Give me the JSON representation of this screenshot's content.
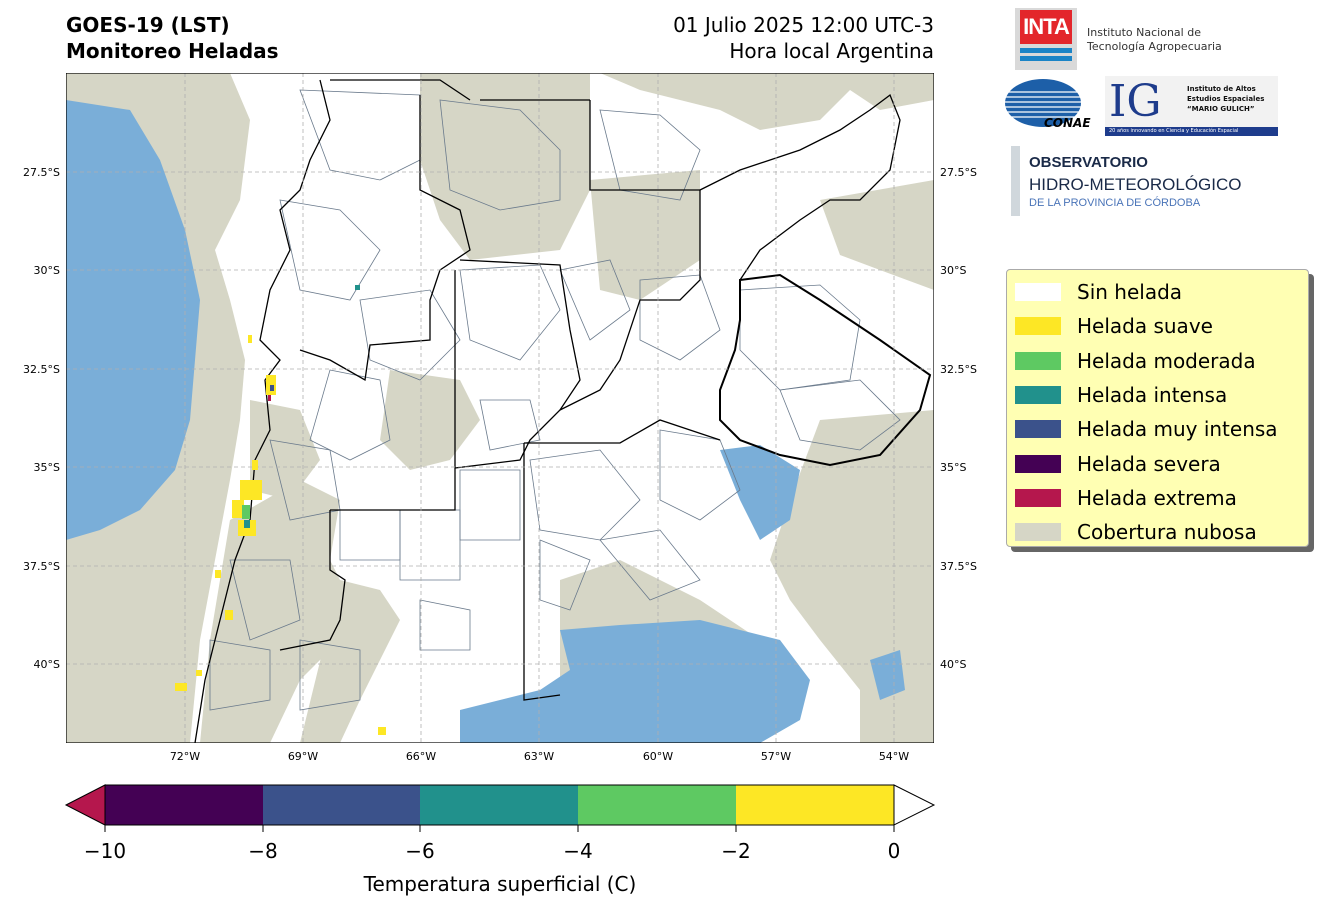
{
  "header": {
    "left_line1": "GOES-19 (LST)",
    "left_line2": "Monitoreo Heladas",
    "right_line1": "01 Julio 2025 12:00 UTC-3",
    "right_line2": "Hora local Argentina"
  },
  "map": {
    "lat_ticks": [
      "27.5°S",
      "30°S",
      "32.5°S",
      "35°S",
      "37.5°S",
      "40°S"
    ],
    "lon_ticks": [
      "72°W",
      "69°W",
      "66°W",
      "63°W",
      "60°W",
      "57°W",
      "54°W"
    ],
    "colors": {
      "cloud": "#d6d6c6",
      "water": "#7aaed8",
      "land": "#ffffff",
      "border": "#000000",
      "department_line": "#6a7a8c"
    }
  },
  "legend": {
    "items": [
      {
        "label": "Sin helada",
        "color": "#ffffff"
      },
      {
        "label": "Helada suave",
        "color": "#fde725"
      },
      {
        "label": "Helada moderada",
        "color": "#5ec962"
      },
      {
        "label": "Helada intensa",
        "color": "#21918c"
      },
      {
        "label": "Helada muy intensa",
        "color": "#3b528b"
      },
      {
        "label": "Helada severa",
        "color": "#440154"
      },
      {
        "label": "Helada extrema",
        "color": "#b5174d"
      },
      {
        "label": "Cobertura nubosa",
        "color": "#d6d6c6"
      }
    ]
  },
  "colorbar": {
    "label": "Temperatura superficial (C)",
    "ticks": [
      "−10",
      "−8",
      "−6",
      "−4",
      "−2",
      "0"
    ],
    "under_color": "#b5174d",
    "over_color": "#ffffff",
    "bins": [
      "#440154",
      "#3b528b",
      "#21918c",
      "#5ec962",
      "#fde725"
    ]
  },
  "logos": {
    "inta_mark": "INTA",
    "inta_name_line1": "Instituto Nacional de",
    "inta_name_line2": "Tecnología Agropecuaria",
    "conae_mark": "CONAE",
    "ig_mark": "IG",
    "ig_line1": "Instituto de Altos",
    "ig_line2": "Estudios Espaciales",
    "ig_line3": "“MARIO GULICH”",
    "ig_strip": "20 años innovando en Ciencia y Educación Espacial",
    "obs_line1": "OBSERVATORIO",
    "obs_line2": "HIDRO-METEOROLÓGICO",
    "obs_line3": "DE LA PROVINCIA DE CÓRDOBA"
  }
}
